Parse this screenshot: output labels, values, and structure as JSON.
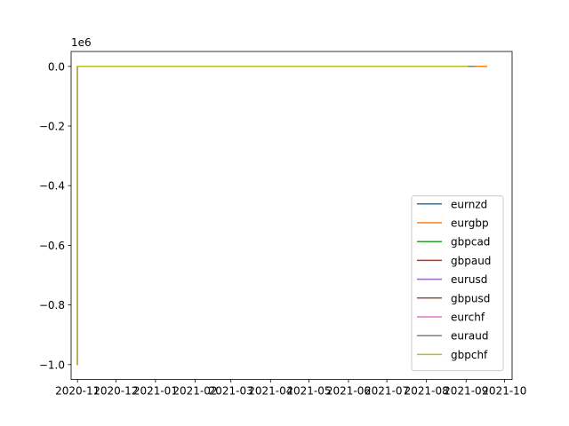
{
  "chart_data": {
    "type": "line",
    "title": "",
    "xlabel": "",
    "ylabel": "",
    "y_offset_label": "1e6",
    "x_is_date": true,
    "xlim": [
      "2020-10-27",
      "2021-10-07"
    ],
    "ylim": [
      -1050000,
      50000
    ],
    "x_tick_labels": [
      "2020-11",
      "2020-12",
      "2021-01",
      "2021-02",
      "2021-03",
      "2021-04",
      "2021-05",
      "2021-06",
      "2021-07",
      "2021-08",
      "2021-09",
      "2021-10"
    ],
    "x_tick_dates": [
      "2020-11-01",
      "2020-12-01",
      "2021-01-01",
      "2021-02-01",
      "2021-03-01",
      "2021-04-01",
      "2021-05-01",
      "2021-06-01",
      "2021-07-01",
      "2021-08-01",
      "2021-09-01",
      "2021-10-01"
    ],
    "y_ticks": [
      0.0,
      -200000,
      -400000,
      -600000,
      -800000,
      -1000000
    ],
    "y_tick_labels": [
      "0.0",
      "−0.2",
      "−0.4",
      "−0.6",
      "−0.8",
      "−1.0"
    ],
    "legend_position": "lower-right",
    "grid": false,
    "series": [
      {
        "name": "eurnzd",
        "color": "#1f77b4",
        "points": [
          [
            "2020-11-01",
            -1000000
          ],
          [
            "2020-11-01",
            0
          ],
          [
            "2021-09-05",
            0
          ]
        ]
      },
      {
        "name": "eurgbp",
        "color": "#ff7f0e",
        "points": [
          [
            "2020-11-01",
            -1000000
          ],
          [
            "2020-11-01",
            0
          ],
          [
            "2021-09-17",
            0
          ]
        ]
      },
      {
        "name": "gbpcad",
        "color": "#2ca02c",
        "points": [
          [
            "2020-11-01",
            -1000000
          ],
          [
            "2020-11-01",
            0
          ],
          [
            "2021-09-05",
            0
          ]
        ]
      },
      {
        "name": "gbpaud",
        "color": "#d62728",
        "points": [
          [
            "2020-11-01",
            -1000000
          ],
          [
            "2020-11-01",
            0
          ],
          [
            "2021-09-05",
            0
          ]
        ]
      },
      {
        "name": "eurusd",
        "color": "#9467bd",
        "points": [
          [
            "2020-11-01",
            -1000000
          ],
          [
            "2020-11-01",
            0
          ],
          [
            "2021-09-05",
            0
          ]
        ]
      },
      {
        "name": "gbpusd",
        "color": "#8c564b",
        "points": [
          [
            "2020-11-01",
            -1000000
          ],
          [
            "2020-11-01",
            0
          ],
          [
            "2021-09-05",
            0
          ]
        ]
      },
      {
        "name": "eurchf",
        "color": "#e377c2",
        "points": [
          [
            "2020-11-01",
            -1000000
          ],
          [
            "2020-11-01",
            0
          ],
          [
            "2021-09-05",
            0
          ]
        ]
      },
      {
        "name": "euraud",
        "color": "#7f7f7f",
        "points": [
          [
            "2020-11-01",
            -1000000
          ],
          [
            "2020-11-01",
            0
          ],
          [
            "2021-09-08",
            0
          ]
        ]
      },
      {
        "name": "gbpchf",
        "color": "#bcbd22",
        "points": [
          [
            "2020-11-01",
            -1000000
          ],
          [
            "2020-11-01",
            0
          ],
          [
            "2021-09-02",
            0
          ]
        ]
      }
    ]
  }
}
